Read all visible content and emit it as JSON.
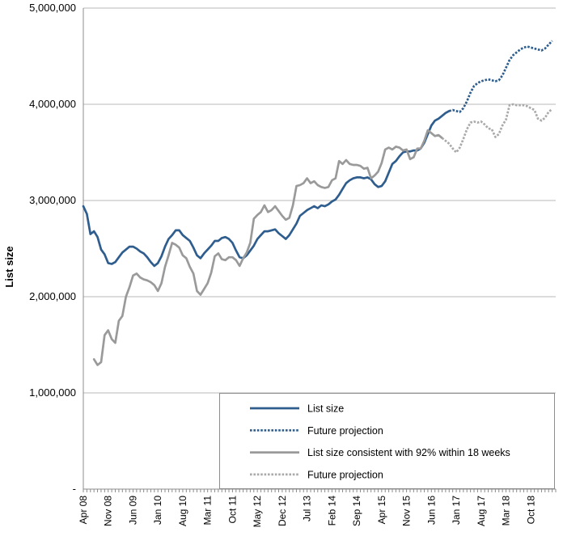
{
  "chart_data": {
    "type": "line",
    "title": "",
    "xlabel": "",
    "ylabel": "List size",
    "ylim": [
      0,
      5000000
    ],
    "xlim": [
      "2008-04",
      "2019-05"
    ],
    "y_ticks": [
      "-",
      "1,000,000",
      "2,000,000",
      "3,000,000",
      "4,000,000",
      "5,000,000"
    ],
    "y_tick_values": [
      0,
      1000000,
      2000000,
      3000000,
      4000000,
      5000000
    ],
    "x_ticks": [
      "Apr 08",
      "Nov 08",
      "Jun 09",
      "Jan 10",
      "Aug 10",
      "Mar 11",
      "Oct 11",
      "May 12",
      "Dec 12",
      "Jul 13",
      "Feb 14",
      "Sep 14",
      "Apr 15",
      "Nov 15",
      "Jun 16",
      "Jan 17",
      "Aug 17",
      "Mar 18",
      "Oct 18"
    ],
    "x_tick_dates": [
      "2008-04",
      "2008-11",
      "2009-06",
      "2010-01",
      "2010-08",
      "2011-03",
      "2011-10",
      "2012-05",
      "2012-12",
      "2013-07",
      "2014-02",
      "2014-09",
      "2015-04",
      "2015-11",
      "2016-06",
      "2017-01",
      "2017-08",
      "2018-03",
      "2018-10"
    ],
    "grid": "horizontal",
    "legend_position": "bottom-right",
    "series": [
      {
        "name": "List size",
        "color": "#2e5d8e",
        "style": "solid",
        "points": [
          [
            "2008-04",
            2940000
          ],
          [
            "2008-05",
            2860000
          ],
          [
            "2008-06",
            2650000
          ],
          [
            "2008-07",
            2680000
          ],
          [
            "2008-08",
            2620000
          ],
          [
            "2008-09",
            2490000
          ],
          [
            "2008-10",
            2440000
          ],
          [
            "2008-11",
            2350000
          ],
          [
            "2008-12",
            2340000
          ],
          [
            "2009-01",
            2360000
          ],
          [
            "2009-02",
            2410000
          ],
          [
            "2009-03",
            2460000
          ],
          [
            "2009-04",
            2490000
          ],
          [
            "2009-05",
            2520000
          ],
          [
            "2009-06",
            2520000
          ],
          [
            "2009-07",
            2500000
          ],
          [
            "2009-08",
            2470000
          ],
          [
            "2009-09",
            2450000
          ],
          [
            "2009-10",
            2410000
          ],
          [
            "2009-11",
            2360000
          ],
          [
            "2009-12",
            2320000
          ],
          [
            "2010-01",
            2350000
          ],
          [
            "2010-02",
            2420000
          ],
          [
            "2010-03",
            2520000
          ],
          [
            "2010-04",
            2600000
          ],
          [
            "2010-05",
            2640000
          ],
          [
            "2010-06",
            2690000
          ],
          [
            "2010-07",
            2690000
          ],
          [
            "2010-08",
            2640000
          ],
          [
            "2010-09",
            2610000
          ],
          [
            "2010-10",
            2580000
          ],
          [
            "2010-11",
            2510000
          ],
          [
            "2010-12",
            2430000
          ],
          [
            "2011-01",
            2400000
          ],
          [
            "2011-02",
            2450000
          ],
          [
            "2011-03",
            2490000
          ],
          [
            "2011-04",
            2530000
          ],
          [
            "2011-05",
            2580000
          ],
          [
            "2011-06",
            2580000
          ],
          [
            "2011-07",
            2610000
          ],
          [
            "2011-08",
            2620000
          ],
          [
            "2011-09",
            2600000
          ],
          [
            "2011-10",
            2560000
          ],
          [
            "2011-11",
            2480000
          ],
          [
            "2011-12",
            2410000
          ],
          [
            "2012-01",
            2400000
          ],
          [
            "2012-02",
            2430000
          ],
          [
            "2012-03",
            2480000
          ],
          [
            "2012-04",
            2530000
          ],
          [
            "2012-05",
            2600000
          ],
          [
            "2012-06",
            2640000
          ],
          [
            "2012-07",
            2680000
          ],
          [
            "2012-08",
            2680000
          ],
          [
            "2012-09",
            2690000
          ],
          [
            "2012-10",
            2700000
          ],
          [
            "2012-11",
            2660000
          ],
          [
            "2012-12",
            2630000
          ],
          [
            "2013-01",
            2600000
          ],
          [
            "2013-02",
            2640000
          ],
          [
            "2013-03",
            2700000
          ],
          [
            "2013-04",
            2760000
          ],
          [
            "2013-05",
            2840000
          ],
          [
            "2013-06",
            2870000
          ],
          [
            "2013-07",
            2900000
          ],
          [
            "2013-08",
            2920000
          ],
          [
            "2013-09",
            2940000
          ],
          [
            "2013-10",
            2920000
          ],
          [
            "2013-11",
            2950000
          ],
          [
            "2013-12",
            2940000
          ],
          [
            "2014-01",
            2960000
          ],
          [
            "2014-02",
            2990000
          ],
          [
            "2014-03",
            3010000
          ],
          [
            "2014-04",
            3060000
          ],
          [
            "2014-05",
            3120000
          ],
          [
            "2014-06",
            3180000
          ],
          [
            "2014-07",
            3210000
          ],
          [
            "2014-08",
            3230000
          ],
          [
            "2014-09",
            3240000
          ],
          [
            "2014-10",
            3240000
          ],
          [
            "2014-11",
            3230000
          ],
          [
            "2014-12",
            3240000
          ],
          [
            "2015-01",
            3220000
          ],
          [
            "2015-02",
            3170000
          ],
          [
            "2015-03",
            3140000
          ],
          [
            "2015-04",
            3150000
          ],
          [
            "2015-05",
            3200000
          ],
          [
            "2015-06",
            3290000
          ],
          [
            "2015-07",
            3380000
          ],
          [
            "2015-08",
            3410000
          ],
          [
            "2015-09",
            3460000
          ],
          [
            "2015-10",
            3500000
          ],
          [
            "2015-11",
            3510000
          ],
          [
            "2015-12",
            3510000
          ],
          [
            "2016-01",
            3520000
          ],
          [
            "2016-02",
            3520000
          ],
          [
            "2016-03",
            3540000
          ],
          [
            "2016-04",
            3600000
          ],
          [
            "2016-05",
            3690000
          ],
          [
            "2016-06",
            3780000
          ],
          [
            "2016-07",
            3830000
          ],
          [
            "2016-08",
            3850000
          ],
          [
            "2016-09",
            3880000
          ],
          [
            "2016-10",
            3910000
          ],
          [
            "2016-11",
            3930000
          ]
        ]
      },
      {
        "name": "Future projection",
        "color": "#2e5d8e",
        "style": "dotted",
        "points": [
          [
            "2016-11",
            3930000
          ],
          [
            "2016-12",
            3940000
          ],
          [
            "2017-01",
            3930000
          ],
          [
            "2017-02",
            3920000
          ],
          [
            "2017-03",
            3960000
          ],
          [
            "2017-04",
            4030000
          ],
          [
            "2017-05",
            4120000
          ],
          [
            "2017-06",
            4190000
          ],
          [
            "2017-07",
            4220000
          ],
          [
            "2017-08",
            4240000
          ],
          [
            "2017-09",
            4250000
          ],
          [
            "2017-10",
            4260000
          ],
          [
            "2017-11",
            4250000
          ],
          [
            "2017-12",
            4240000
          ],
          [
            "2018-01",
            4250000
          ],
          [
            "2018-02",
            4300000
          ],
          [
            "2018-03",
            4380000
          ],
          [
            "2018-04",
            4460000
          ],
          [
            "2018-05",
            4510000
          ],
          [
            "2018-06",
            4540000
          ],
          [
            "2018-07",
            4570000
          ],
          [
            "2018-08",
            4590000
          ],
          [
            "2018-09",
            4600000
          ],
          [
            "2018-10",
            4590000
          ],
          [
            "2018-11",
            4580000
          ],
          [
            "2018-12",
            4570000
          ],
          [
            "2019-01",
            4560000
          ],
          [
            "2019-02",
            4580000
          ],
          [
            "2019-03",
            4620000
          ],
          [
            "2019-04",
            4660000
          ]
        ]
      },
      {
        "name": "List size consistent with 92% within 18 weeks",
        "color": "#9a9a9a",
        "style": "solid",
        "points": [
          [
            "2008-07",
            1350000
          ],
          [
            "2008-08",
            1290000
          ],
          [
            "2008-09",
            1320000
          ],
          [
            "2008-10",
            1600000
          ],
          [
            "2008-11",
            1650000
          ],
          [
            "2008-12",
            1560000
          ],
          [
            "2009-01",
            1520000
          ],
          [
            "2009-02",
            1750000
          ],
          [
            "2009-03",
            1800000
          ],
          [
            "2009-04",
            2000000
          ],
          [
            "2009-05",
            2100000
          ],
          [
            "2009-06",
            2220000
          ],
          [
            "2009-07",
            2240000
          ],
          [
            "2009-08",
            2200000
          ],
          [
            "2009-09",
            2180000
          ],
          [
            "2009-10",
            2170000
          ],
          [
            "2009-11",
            2150000
          ],
          [
            "2009-12",
            2120000
          ],
          [
            "2010-01",
            2060000
          ],
          [
            "2010-02",
            2140000
          ],
          [
            "2010-03",
            2310000
          ],
          [
            "2010-04",
            2430000
          ],
          [
            "2010-05",
            2560000
          ],
          [
            "2010-06",
            2540000
          ],
          [
            "2010-07",
            2510000
          ],
          [
            "2010-08",
            2430000
          ],
          [
            "2010-09",
            2400000
          ],
          [
            "2010-10",
            2310000
          ],
          [
            "2010-11",
            2240000
          ],
          [
            "2010-12",
            2060000
          ],
          [
            "2011-01",
            2020000
          ],
          [
            "2011-02",
            2080000
          ],
          [
            "2011-03",
            2140000
          ],
          [
            "2011-04",
            2250000
          ],
          [
            "2011-05",
            2420000
          ],
          [
            "2011-06",
            2450000
          ],
          [
            "2011-07",
            2390000
          ],
          [
            "2011-08",
            2380000
          ],
          [
            "2011-09",
            2410000
          ],
          [
            "2011-10",
            2410000
          ],
          [
            "2011-11",
            2380000
          ],
          [
            "2011-12",
            2320000
          ],
          [
            "2012-01",
            2400000
          ],
          [
            "2012-02",
            2460000
          ],
          [
            "2012-03",
            2560000
          ],
          [
            "2012-04",
            2810000
          ],
          [
            "2012-05",
            2850000
          ],
          [
            "2012-06",
            2880000
          ],
          [
            "2012-07",
            2950000
          ],
          [
            "2012-08",
            2880000
          ],
          [
            "2012-09",
            2900000
          ],
          [
            "2012-10",
            2940000
          ],
          [
            "2012-11",
            2890000
          ],
          [
            "2012-12",
            2840000
          ],
          [
            "2013-01",
            2800000
          ],
          [
            "2013-02",
            2820000
          ],
          [
            "2013-03",
            2950000
          ],
          [
            "2013-04",
            3150000
          ],
          [
            "2013-05",
            3160000
          ],
          [
            "2013-06",
            3180000
          ],
          [
            "2013-07",
            3230000
          ],
          [
            "2013-08",
            3180000
          ],
          [
            "2013-09",
            3200000
          ],
          [
            "2013-10",
            3160000
          ],
          [
            "2013-11",
            3140000
          ],
          [
            "2013-12",
            3130000
          ],
          [
            "2014-01",
            3140000
          ],
          [
            "2014-02",
            3210000
          ],
          [
            "2014-03",
            3230000
          ],
          [
            "2014-04",
            3410000
          ],
          [
            "2014-05",
            3380000
          ],
          [
            "2014-06",
            3420000
          ],
          [
            "2014-07",
            3380000
          ],
          [
            "2014-08",
            3370000
          ],
          [
            "2014-09",
            3370000
          ],
          [
            "2014-10",
            3360000
          ],
          [
            "2014-11",
            3330000
          ],
          [
            "2014-12",
            3340000
          ],
          [
            "2015-01",
            3230000
          ],
          [
            "2015-02",
            3260000
          ],
          [
            "2015-03",
            3300000
          ],
          [
            "2015-04",
            3390000
          ],
          [
            "2015-05",
            3530000
          ],
          [
            "2015-06",
            3550000
          ],
          [
            "2015-07",
            3530000
          ],
          [
            "2015-08",
            3560000
          ],
          [
            "2015-09",
            3550000
          ],
          [
            "2015-10",
            3520000
          ],
          [
            "2015-11",
            3530000
          ],
          [
            "2015-12",
            3430000
          ],
          [
            "2016-01",
            3450000
          ],
          [
            "2016-02",
            3540000
          ],
          [
            "2016-03",
            3540000
          ],
          [
            "2016-04",
            3620000
          ],
          [
            "2016-05",
            3730000
          ],
          [
            "2016-06",
            3700000
          ],
          [
            "2016-07",
            3670000
          ],
          [
            "2016-08",
            3680000
          ],
          [
            "2016-09",
            3650000
          ]
        ]
      },
      {
        "name": "Future projection",
        "color": "#aaaaaa",
        "style": "dotted",
        "points": [
          [
            "2016-09",
            3650000
          ],
          [
            "2016-10",
            3620000
          ],
          [
            "2016-11",
            3590000
          ],
          [
            "2016-12",
            3540000
          ],
          [
            "2017-01",
            3500000
          ],
          [
            "2017-02",
            3550000
          ],
          [
            "2017-03",
            3640000
          ],
          [
            "2017-04",
            3740000
          ],
          [
            "2017-05",
            3810000
          ],
          [
            "2017-06",
            3820000
          ],
          [
            "2017-07",
            3810000
          ],
          [
            "2017-08",
            3820000
          ],
          [
            "2017-09",
            3790000
          ],
          [
            "2017-10",
            3750000
          ],
          [
            "2017-11",
            3740000
          ],
          [
            "2017-12",
            3660000
          ],
          [
            "2018-01",
            3690000
          ],
          [
            "2018-02",
            3780000
          ],
          [
            "2018-03",
            3840000
          ],
          [
            "2018-04",
            3990000
          ],
          [
            "2018-05",
            4000000
          ],
          [
            "2018-06",
            3990000
          ],
          [
            "2018-07",
            3990000
          ],
          [
            "2018-08",
            3990000
          ],
          [
            "2018-09",
            3980000
          ],
          [
            "2018-10",
            3960000
          ],
          [
            "2018-11",
            3940000
          ],
          [
            "2018-12",
            3850000
          ],
          [
            "2019-01",
            3830000
          ],
          [
            "2019-02",
            3860000
          ],
          [
            "2019-03",
            3920000
          ],
          [
            "2019-04",
            3950000
          ]
        ]
      }
    ]
  }
}
